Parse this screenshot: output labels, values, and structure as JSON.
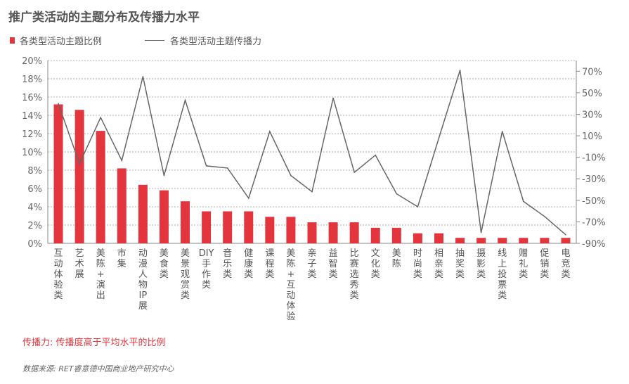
{
  "chart_data": {
    "type": "bar+line",
    "title": "推广类活动的主题分布及传播力水平",
    "legend": {
      "bar_label": "各类型活动主题比例",
      "line_label": "各类型活动主题传播力"
    },
    "colors": {
      "bar": "#e2353d",
      "line": "#666666",
      "grid": "#999999"
    },
    "categories": [
      [
        "互",
        "动",
        "体",
        "验",
        "类"
      ],
      [
        "艺",
        "术",
        "展"
      ],
      [
        "美",
        "陈",
        "+",
        "演",
        "出"
      ],
      [
        "市",
        "集"
      ],
      [
        "动",
        "漫",
        "人",
        "物",
        "IP",
        "展"
      ],
      [
        "美",
        "食",
        "类"
      ],
      [
        "美",
        "景",
        "观",
        "赏",
        "类"
      ],
      [
        "DIY",
        "手",
        "作",
        "类"
      ],
      [
        "音",
        "乐",
        "类"
      ],
      [
        "健",
        "康",
        "类"
      ],
      [
        "课",
        "程",
        "类"
      ],
      [
        "美",
        "陈",
        "+",
        "互",
        "动",
        "体",
        "验"
      ],
      [
        "亲",
        "子",
        "类"
      ],
      [
        "益",
        "智",
        "类"
      ],
      [
        "比",
        "赛",
        "选",
        "秀",
        "类"
      ],
      [
        "文",
        "化",
        "类"
      ],
      [
        "美",
        "陈"
      ],
      [
        "时",
        "尚",
        "类"
      ],
      [
        "相",
        "亲",
        "类"
      ],
      [
        "抽",
        "奖",
        "类"
      ],
      [
        "摄",
        "影",
        "类"
      ],
      [
        "线",
        "上",
        "投",
        "票",
        "类"
      ],
      [
        "赠",
        "礼",
        "类"
      ],
      [
        "促",
        "销",
        "类"
      ],
      [
        "电",
        "竞",
        "类"
      ]
    ],
    "series": [
      {
        "name": "各类型活动主题比例",
        "axis": "left",
        "unit": "%",
        "values": [
          15.2,
          14.6,
          12.3,
          8.2,
          6.4,
          5.8,
          4.6,
          3.5,
          3.5,
          3.5,
          2.9,
          2.9,
          2.3,
          2.3,
          2.3,
          1.7,
          1.7,
          1.1,
          1.1,
          0.6,
          0.6,
          0.6,
          0.6,
          0.6,
          0.6
        ]
      },
      {
        "name": "各类型活动主题传播力",
        "axis": "right",
        "unit": "%",
        "values": [
          40,
          -16,
          27,
          -13,
          65,
          -27,
          43,
          -18,
          -20,
          -48,
          14,
          -27,
          -42,
          45,
          -24,
          -8,
          -44,
          -56,
          8,
          71,
          -80,
          14,
          -51,
          -65,
          -82
        ]
      }
    ],
    "y_left": {
      "min": 0,
      "max": 20,
      "ticks": [
        "0%",
        "2%",
        "4%",
        "6%",
        "8%",
        "10%",
        "12%",
        "14%",
        "16%",
        "18%",
        "20%"
      ]
    },
    "y_right": {
      "min": -90,
      "max": 80,
      "ticks": [
        "-90%",
        "-70%",
        "-50%",
        "-30%",
        "-10%",
        "10%",
        "30%",
        "50%",
        "70%"
      ],
      "tick_values": [
        -90,
        -70,
        -50,
        -30,
        -10,
        10,
        30,
        50,
        70
      ]
    },
    "grid": true
  },
  "note": "传播力: 传播度高于平均水平的比例",
  "source": "数据来源: RET睿意德中国商业地产研究中心"
}
